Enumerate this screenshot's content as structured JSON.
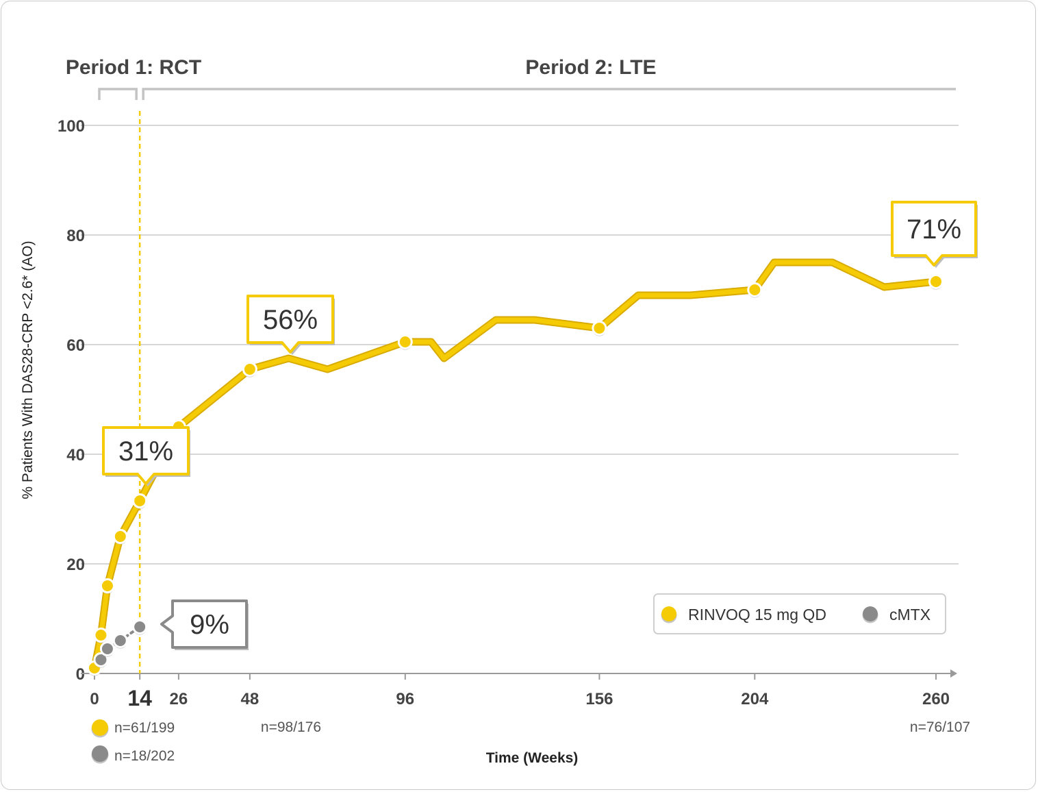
{
  "colors": {
    "series1": "#f5cb05",
    "series1_stroke": "#e7b800",
    "series2": "#8a8a8a",
    "grid": "#c8c8c8",
    "text": "#444444"
  },
  "chart_data": {
    "type": "line",
    "ylabel": "% Patients With DAS28-CRP <2.6* (AO)",
    "xlabel": "Time (Weeks)",
    "ylim": [
      0,
      100
    ],
    "xlim": [
      0,
      260
    ],
    "y_ticks": [
      "0",
      "20",
      "40",
      "60",
      "80",
      "100"
    ],
    "x_ticks": [
      {
        "value": 0,
        "label": "0"
      },
      {
        "value": 14,
        "label": "14"
      },
      {
        "value": 26,
        "label": "26"
      },
      {
        "value": 48,
        "label": "48"
      },
      {
        "value": 96,
        "label": "96"
      },
      {
        "value": 156,
        "label": "156"
      },
      {
        "value": 204,
        "label": "204"
      },
      {
        "value": 260,
        "label": "260"
      }
    ],
    "grid": true,
    "legend_position": "bottom-right",
    "periods": [
      {
        "label": "Period 1: RCT"
      },
      {
        "label": "Period 2: LTE"
      }
    ],
    "series": [
      {
        "name": "RINVOQ 15 mg QD",
        "color": "#f5cb05",
        "points": [
          [
            0,
            1
          ],
          [
            2,
            7
          ],
          [
            4,
            16
          ],
          [
            8,
            25
          ],
          [
            14,
            31.5
          ],
          [
            26,
            45
          ],
          [
            48,
            55.5
          ],
          [
            60,
            57.5
          ],
          [
            72,
            55.5
          ],
          [
            96,
            60.5
          ],
          [
            104,
            60.5
          ],
          [
            108,
            57.5
          ],
          [
            124,
            64.5
          ],
          [
            136,
            64.5
          ],
          [
            156,
            63
          ],
          [
            168,
            69
          ],
          [
            184,
            69
          ],
          [
            204,
            70
          ],
          [
            210,
            75
          ],
          [
            228,
            75
          ],
          [
            244,
            70.5
          ],
          [
            260,
            71.5
          ]
        ],
        "markers_at": [
          0,
          2,
          4,
          8,
          14,
          26,
          48,
          96,
          156,
          204,
          260
        ]
      },
      {
        "name": "cMTX",
        "color": "#8a8a8a",
        "points": [
          [
            2,
            2.5
          ],
          [
            4,
            4.5
          ],
          [
            8,
            6
          ],
          [
            14,
            8.5
          ]
        ],
        "markers_at": [
          2,
          4,
          8,
          14
        ]
      }
    ],
    "annotations": [
      {
        "text": "31%",
        "series": 0,
        "x": 14,
        "y": 31.5
      },
      {
        "text": "56%",
        "series": 0,
        "x": 48,
        "y": 55.5
      },
      {
        "text": "71%",
        "series": 0,
        "x": 260,
        "y": 71.5
      },
      {
        "text": "9%",
        "series": 1,
        "x": 14,
        "y": 8.5
      }
    ],
    "n_labels": [
      {
        "text": "n=61/199",
        "series": 0,
        "at_x": 14
      },
      {
        "text": "n=18/202",
        "series": 1,
        "at_x": 14
      },
      {
        "text": "n=98/176",
        "series": 0,
        "at_x": 48
      },
      {
        "text": "n=76/107",
        "series": 0,
        "at_x": 260
      }
    ]
  }
}
